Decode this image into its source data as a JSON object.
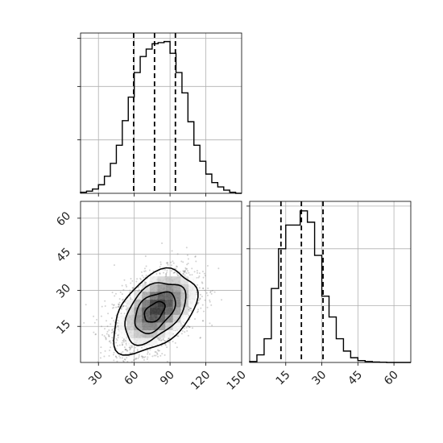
{
  "chart_data": [
    {
      "type": "histogram",
      "panel": "top-left",
      "variable": "x",
      "xlim": [
        15,
        150
      ],
      "bins": [
        {
          "x": 15,
          "count": 1
        },
        {
          "x": 20,
          "count": 2
        },
        {
          "x": 25,
          "count": 4
        },
        {
          "x": 30,
          "count": 8
        },
        {
          "x": 35,
          "count": 16
        },
        {
          "x": 40,
          "count": 28
        },
        {
          "x": 45,
          "count": 45
        },
        {
          "x": 50,
          "count": 68
        },
        {
          "x": 55,
          "count": 90
        },
        {
          "x": 60,
          "count": 113
        },
        {
          "x": 65,
          "count": 128
        },
        {
          "x": 70,
          "count": 135
        },
        {
          "x": 75,
          "count": 140
        },
        {
          "x": 80,
          "count": 141
        },
        {
          "x": 85,
          "count": 142
        },
        {
          "x": 90,
          "count": 131
        },
        {
          "x": 95,
          "count": 113
        },
        {
          "x": 100,
          "count": 94
        },
        {
          "x": 105,
          "count": 67
        },
        {
          "x": 110,
          "count": 45
        },
        {
          "x": 115,
          "count": 30
        },
        {
          "x": 120,
          "count": 18
        },
        {
          "x": 125,
          "count": 10
        },
        {
          "x": 130,
          "count": 6
        },
        {
          "x": 135,
          "count": 3
        },
        {
          "x": 140,
          "count": 1
        },
        {
          "x": 145,
          "count": 0
        }
      ],
      "bin_width": 5,
      "ylim": [
        0,
        150
      ],
      "quantiles": [
        59.5,
        77,
        94.5
      ],
      "grid": true
    },
    {
      "type": "histogram",
      "panel": "bottom-right",
      "variable": "y",
      "xlim": [
        0,
        67
      ],
      "bins": [
        {
          "x": 0,
          "count": 1
        },
        {
          "x": 3,
          "count": 8
        },
        {
          "x": 6,
          "count": 25
        },
        {
          "x": 9,
          "count": 78
        },
        {
          "x": 12,
          "count": 120
        },
        {
          "x": 15,
          "count": 145
        },
        {
          "x": 18,
          "count": 145
        },
        {
          "x": 21,
          "count": 160
        },
        {
          "x": 24,
          "count": 148
        },
        {
          "x": 27,
          "count": 113
        },
        {
          "x": 30,
          "count": 70
        },
        {
          "x": 33,
          "count": 48
        },
        {
          "x": 36,
          "count": 25
        },
        {
          "x": 39,
          "count": 12
        },
        {
          "x": 42,
          "count": 5
        },
        {
          "x": 45,
          "count": 2
        },
        {
          "x": 48,
          "count": 1
        },
        {
          "x": 51,
          "count": 0.5
        },
        {
          "x": 54,
          "count": 0.3
        },
        {
          "x": 57,
          "count": 0
        }
      ],
      "bin_width": 3,
      "ylim": [
        0,
        170
      ],
      "quantiles": [
        13,
        21.5,
        30.5
      ],
      "grid": true
    },
    {
      "type": "scatter",
      "panel": "bottom-left",
      "xvar": "x",
      "yvar": "y",
      "xlim": [
        15,
        150
      ],
      "ylim": [
        0,
        67
      ],
      "xticks": [
        "30",
        "60",
        "90",
        "120",
        "150"
      ],
      "yticks": [
        "15",
        "30",
        "45",
        "60"
      ],
      "density_center": [
        77,
        21
      ],
      "density_spread": [
        17,
        8.5
      ],
      "correlation": 0.45,
      "contour_levels": [
        "inner",
        "middle",
        "outer",
        "outermost"
      ],
      "grid": true
    }
  ],
  "bottom_right_xticks": [
    "15",
    "30",
    "45",
    "60"
  ],
  "colors": {
    "points": "#7f7f7f",
    "contour": "#000000",
    "grid": "#b0b0b0"
  }
}
